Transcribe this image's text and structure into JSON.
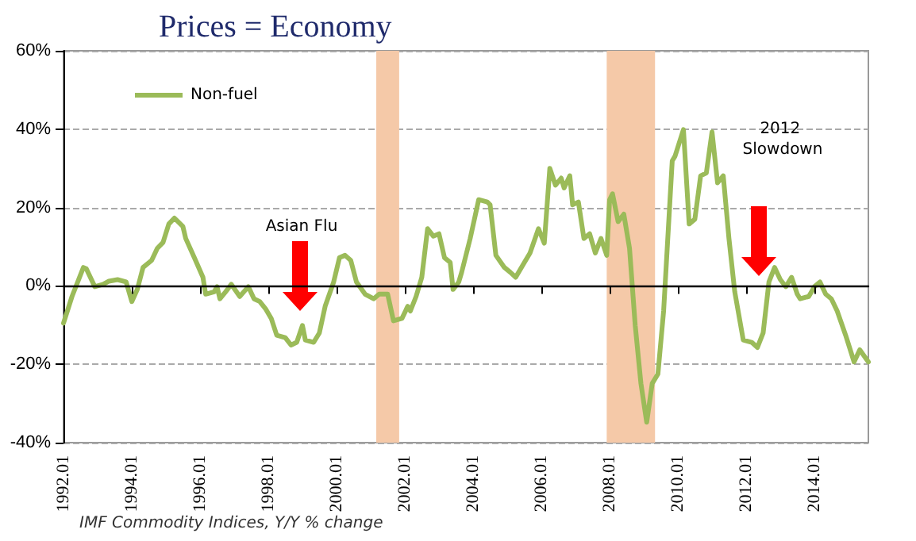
{
  "chart_data": {
    "type": "line",
    "title": "Prices = Economy",
    "annotations": [
      "Asian Flu",
      "2012 Slowdown",
      "IMF Commodity Indices, Y/Y % change"
    ],
    "xlim": [
      "1992-01",
      "2015-08"
    ],
    "xticks": [
      {
        "value": "1992-01",
        "label": "1992.01"
      },
      {
        "value": "1994-01",
        "label": "1994.01"
      },
      {
        "value": "1996-01",
        "label": "1996.01"
      },
      {
        "value": "1998-01",
        "label": "1998.01"
      },
      {
        "value": "2000-01",
        "label": "2000.01"
      },
      {
        "value": "2002-01",
        "label": "2002.01"
      },
      {
        "value": "2004-01",
        "label": "2004.01"
      },
      {
        "value": "2006-01",
        "label": "2006.01"
      },
      {
        "value": "2008-01",
        "label": "2008.01"
      },
      {
        "value": "2010-01",
        "label": "2010.01"
      },
      {
        "value": "2012-01",
        "label": "2012.01"
      },
      {
        "value": "2014-01",
        "label": "2014.01"
      }
    ],
    "ylim": [
      -40,
      60
    ],
    "yticks": [
      {
        "value": -40,
        "label": "-40%"
      },
      {
        "value": -20,
        "label": "-20%"
      },
      {
        "value": 0,
        "label": "0%"
      },
      {
        "value": 20,
        "label": "20%"
      },
      {
        "value": 40,
        "label": "40%"
      },
      {
        "value": 60,
        "label": "60%"
      }
    ],
    "grid": "y",
    "legend": "top left",
    "marker": "none",
    "line_style": "solid",
    "bands": [
      {
        "axis": "x",
        "from": "2001-03",
        "to": "2001-11",
        "color": "#f5c9a8"
      },
      {
        "axis": "x",
        "from": "2007-12",
        "to": "2009-05",
        "color": "#f5c9a8"
      }
    ],
    "series": [
      {
        "name": "Non-fuel",
        "color": "#9bbb59",
        "x": [
          "1992-01",
          "1992-04",
          "1992-08",
          "1992-09",
          "1992-12",
          "1993-03",
          "1993-05",
          "1993-08",
          "1993-11",
          "1994-01",
          "1994-03",
          "1994-05",
          "1994-08",
          "1994-10",
          "1994-12",
          "1995-02",
          "1995-04",
          "1995-07",
          "1995-08",
          "1995-11",
          "1996-02",
          "1996-03",
          "1996-06",
          "1996-07",
          "1996-08",
          "1996-10",
          "1996-12",
          "1997-03",
          "1997-06",
          "1997-08",
          "1997-10",
          "1997-12",
          "1998-02",
          "1998-04",
          "1998-07",
          "1998-09",
          "1998-11",
          "1999-01",
          "1999-02",
          "1999-05",
          "1999-07",
          "1999-09",
          "1999-12",
          "2000-02",
          "2000-04",
          "2000-06",
          "2000-08",
          "2000-11",
          "2001-02",
          "2001-04",
          "2001-07",
          "2001-09",
          "2001-12",
          "2002-02",
          "2002-03",
          "2002-05",
          "2002-07",
          "2002-09",
          "2002-11",
          "2003-01",
          "2003-03",
          "2003-05",
          "2003-06",
          "2003-08",
          "2003-09",
          "2003-12",
          "2004-03",
          "2004-06",
          "2004-07",
          "2004-09",
          "2004-12",
          "2005-02",
          "2005-04",
          "2005-07",
          "2005-09",
          "2005-12",
          "2006-02",
          "2006-04",
          "2006-06",
          "2006-08",
          "2006-09",
          "2006-11",
          "2006-12",
          "2007-02",
          "2007-04",
          "2007-06",
          "2007-08",
          "2007-10",
          "2007-12",
          "2008-01",
          "2008-02",
          "2008-04",
          "2008-06",
          "2008-08",
          "2008-10",
          "2008-12",
          "2009-02",
          "2009-04",
          "2009-06",
          "2009-08",
          "2009-11",
          "2009-12",
          "2010-03",
          "2010-05",
          "2010-07",
          "2010-09",
          "2010-11",
          "2011-01",
          "2011-03",
          "2011-05",
          "2011-07",
          "2011-09",
          "2011-12",
          "2012-03",
          "2012-05",
          "2012-07",
          "2012-09",
          "2012-11",
          "2013-01",
          "2013-03",
          "2013-05",
          "2013-07",
          "2013-08",
          "2013-11",
          "2014-01",
          "2014-03",
          "2014-05",
          "2014-07",
          "2014-09",
          "2014-12",
          "2015-03",
          "2015-05",
          "2015-08"
        ],
        "values": [
          -9.5,
          -2.7,
          4.7,
          4.4,
          -0.2,
          0.4,
          1.2,
          1.6,
          1.0,
          -4,
          -0.9,
          4.7,
          6.5,
          9.6,
          11.1,
          15.8,
          17.3,
          15.2,
          12.1,
          7.2,
          2.2,
          -2.1,
          -1.5,
          -0.2,
          -3.3,
          -1.5,
          0.4,
          -2.7,
          -0.2,
          -3.3,
          -4,
          -5.8,
          -8.3,
          -12.6,
          -13.2,
          -15.1,
          -14.4,
          -10.1,
          -13.8,
          -14.4,
          -12,
          -5.2,
          1.0,
          7.2,
          7.8,
          6.5,
          1.0,
          -2.1,
          -3.3,
          -2.1,
          -2.1,
          -8.9,
          -8.3,
          -5.2,
          -6.4,
          -2.7,
          2.2,
          14.6,
          12.7,
          13.3,
          7.2,
          6,
          -0.9,
          1.0,
          3.5,
          12.1,
          22,
          21.4,
          20.7,
          7.8,
          4.7,
          3.5,
          2.2,
          5.9,
          8.4,
          14.6,
          10.9,
          30,
          25.7,
          27.5,
          25,
          28.1,
          20.7,
          21.4,
          12.1,
          13.3,
          8.4,
          12.1,
          7.8,
          22,
          23.5,
          16.4,
          18.3,
          9.6,
          -10.1,
          -24.9,
          -34.8,
          -24.9,
          -22.5,
          -6.4,
          31.9,
          33.1,
          39.9,
          15.8,
          17,
          28.1,
          28.8,
          39.3,
          26.3,
          28.1,
          12.1,
          -1.5,
          -13.8,
          -14.4,
          -15.7,
          -12,
          1.0,
          4.7,
          1.6,
          -0.2,
          2.2,
          -2.1,
          -3.3,
          -2.7,
          -0.2,
          1.0,
          -2.1,
          -3.3,
          -6.4,
          -12.6,
          -19.4,
          -16.3,
          -19.4
        ]
      }
    ]
  }
}
